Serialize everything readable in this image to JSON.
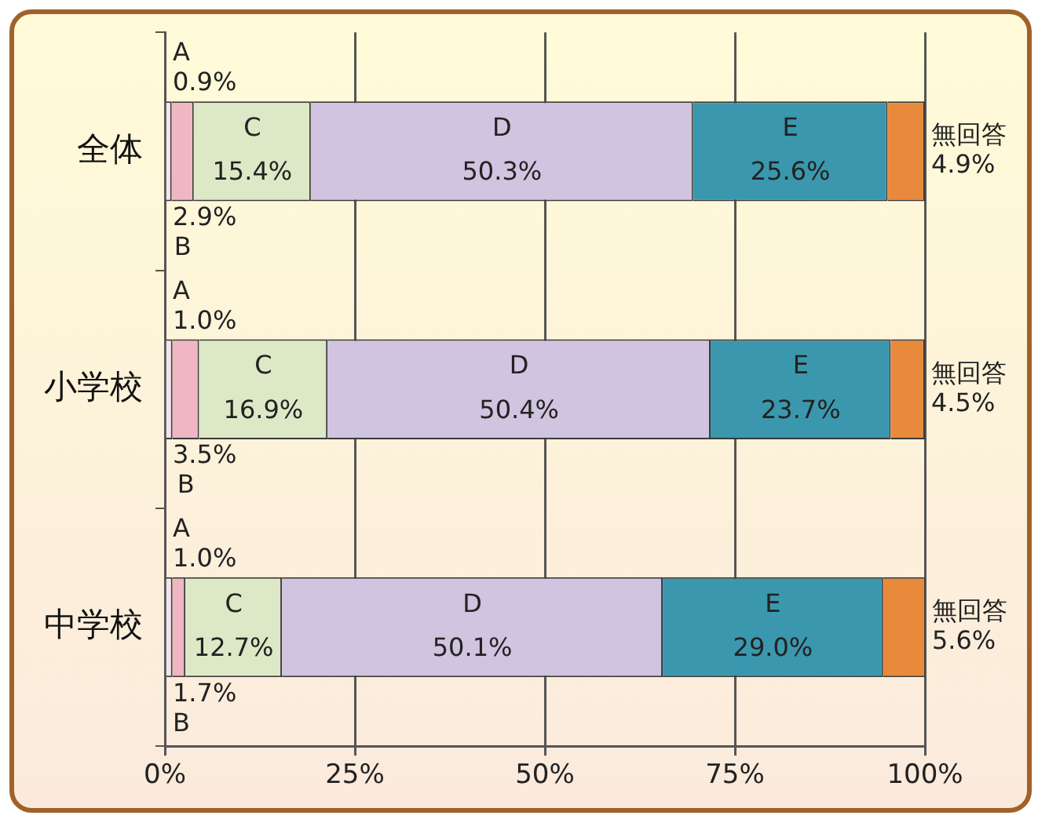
{
  "chart_data": {
    "type": "bar",
    "orientation": "horizontal",
    "stacked": true,
    "categories": [
      "全体",
      "小学校",
      "中学校"
    ],
    "series": [
      {
        "name": "A",
        "color": "#f3e4ee",
        "values": [
          0.9,
          1.0,
          1.0
        ],
        "value_labels": [
          "0.9%",
          "1.0%",
          "1.0%"
        ]
      },
      {
        "name": "B",
        "color": "#f0b6c4",
        "values": [
          2.9,
          3.5,
          1.7
        ],
        "value_labels": [
          "2.9%",
          "3.5%",
          "1.7%"
        ]
      },
      {
        "name": "C",
        "color": "#dde8c6",
        "values": [
          15.4,
          16.9,
          12.7
        ],
        "value_labels": [
          "15.4%",
          "16.9%",
          "12.7%"
        ]
      },
      {
        "name": "D",
        "color": "#d0c4e0",
        "values": [
          50.3,
          50.4,
          50.1
        ],
        "value_labels": [
          "50.3%",
          "50.4%",
          "50.1%"
        ]
      },
      {
        "name": "E",
        "color": "#3b97ae",
        "values": [
          25.6,
          23.7,
          29.0
        ],
        "value_labels": [
          "25.6%",
          "23.7%",
          "29.0%"
        ]
      },
      {
        "name": "無回答",
        "color": "#e8893c",
        "values": [
          4.9,
          4.5,
          5.6
        ],
        "value_labels": [
          "4.9%",
          "4.5%",
          "5.6%"
        ]
      }
    ],
    "xlim": [
      0,
      100
    ],
    "xticks": [
      {
        "value": 0,
        "label": "0%"
      },
      {
        "value": 25,
        "label": "25%"
      },
      {
        "value": 50,
        "label": "50%"
      },
      {
        "value": 75,
        "label": "75%"
      },
      {
        "value": 100,
        "label": "100%"
      }
    ],
    "grid": "x",
    "legend": false
  }
}
